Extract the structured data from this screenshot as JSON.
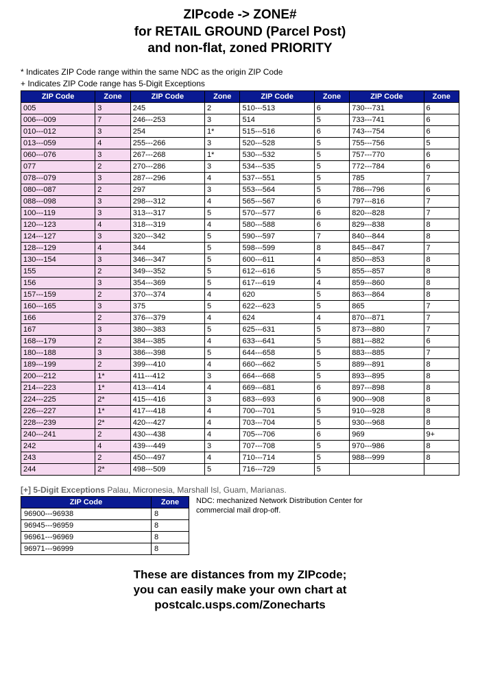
{
  "title_l1": "ZIPcode -> ZONE#",
  "title_l2": "for RETAIL GROUND (Parcel Post)",
  "title_l3": "and non-flat, zoned PRIORITY",
  "note1": "* Indicates ZIP Code range within the same NDC as the origin ZIP Code",
  "note2": "+ Indicates ZIP Code range has 5-Digit Exceptions",
  "headers": {
    "zip": "ZIP Code",
    "zone": "Zone"
  },
  "colors": {
    "header_bg": "#0a1a92",
    "header_fg": "#ffffff",
    "pink": "#f6d9f0",
    "border": "#000000",
    "page_bg": "#ffffff"
  },
  "columns": [
    [
      {
        "z": "005",
        "n": "3"
      },
      {
        "z": "006---009",
        "n": "7"
      },
      {
        "z": "010---012",
        "n": "3"
      },
      {
        "z": "013---059",
        "n": "4"
      },
      {
        "z": "060---076",
        "n": "3"
      },
      {
        "z": "077",
        "n": "2"
      },
      {
        "z": "078---079",
        "n": "3"
      },
      {
        "z": "080---087",
        "n": "2"
      },
      {
        "z": "088---098",
        "n": "3"
      },
      {
        "z": "100---119",
        "n": "3"
      },
      {
        "z": "120---123",
        "n": "4"
      },
      {
        "z": "124---127",
        "n": "3"
      },
      {
        "z": "128---129",
        "n": "4"
      },
      {
        "z": "130---154",
        "n": "3"
      },
      {
        "z": "155",
        "n": "2"
      },
      {
        "z": "156",
        "n": "3"
      },
      {
        "z": "157---159",
        "n": "2"
      },
      {
        "z": "160---165",
        "n": "3"
      },
      {
        "z": "166",
        "n": "2"
      },
      {
        "z": "167",
        "n": "3"
      },
      {
        "z": "168---179",
        "n": "2"
      },
      {
        "z": "180---188",
        "n": "3"
      },
      {
        "z": "189---199",
        "n": "2"
      },
      {
        "z": "200---212",
        "n": "1*"
      },
      {
        "z": "214---223",
        "n": "1*"
      },
      {
        "z": "224---225",
        "n": "2*"
      },
      {
        "z": "226---227",
        "n": "1*"
      },
      {
        "z": "228---239",
        "n": "2*"
      },
      {
        "z": "240---241",
        "n": "2"
      },
      {
        "z": "242",
        "n": "4"
      },
      {
        "z": "243",
        "n": "2"
      },
      {
        "z": "244",
        "n": "2*"
      }
    ],
    [
      {
        "z": "245",
        "n": "2"
      },
      {
        "z": "246---253",
        "n": "3"
      },
      {
        "z": "254",
        "n": "1*"
      },
      {
        "z": "255---266",
        "n": "3"
      },
      {
        "z": "267---268",
        "n": "1*"
      },
      {
        "z": "270---286",
        "n": "3"
      },
      {
        "z": "287---296",
        "n": "4"
      },
      {
        "z": "297",
        "n": "3"
      },
      {
        "z": "298---312",
        "n": "4"
      },
      {
        "z": "313---317",
        "n": "5"
      },
      {
        "z": "318---319",
        "n": "4"
      },
      {
        "z": "320---342",
        "n": "5"
      },
      {
        "z": "344",
        "n": "5"
      },
      {
        "z": "346---347",
        "n": "5"
      },
      {
        "z": "349---352",
        "n": "5"
      },
      {
        "z": "354---369",
        "n": "5"
      },
      {
        "z": "370---374",
        "n": "4"
      },
      {
        "z": "375",
        "n": "5"
      },
      {
        "z": "376---379",
        "n": "4"
      },
      {
        "z": "380---383",
        "n": "5"
      },
      {
        "z": "384---385",
        "n": "4"
      },
      {
        "z": "386---398",
        "n": "5"
      },
      {
        "z": "399---410",
        "n": "4"
      },
      {
        "z": "411---412",
        "n": "3"
      },
      {
        "z": "413---414",
        "n": "4"
      },
      {
        "z": "415---416",
        "n": "3"
      },
      {
        "z": "417---418",
        "n": "4"
      },
      {
        "z": "420---427",
        "n": "4"
      },
      {
        "z": "430---438",
        "n": "4"
      },
      {
        "z": "439---449",
        "n": "3"
      },
      {
        "z": "450---497",
        "n": "4"
      },
      {
        "z": "498---509",
        "n": "5"
      }
    ],
    [
      {
        "z": "510---513",
        "n": "6"
      },
      {
        "z": "514",
        "n": "5"
      },
      {
        "z": "515---516",
        "n": "6"
      },
      {
        "z": "520---528",
        "n": "5"
      },
      {
        "z": "530---532",
        "n": "5"
      },
      {
        "z": "534---535",
        "n": "5"
      },
      {
        "z": "537---551",
        "n": "5"
      },
      {
        "z": "553---564",
        "n": "5"
      },
      {
        "z": "565---567",
        "n": "6"
      },
      {
        "z": "570---577",
        "n": "6"
      },
      {
        "z": "580---588",
        "n": "6"
      },
      {
        "z": "590---597",
        "n": "7"
      },
      {
        "z": "598---599",
        "n": "8"
      },
      {
        "z": "600---611",
        "n": "4"
      },
      {
        "z": "612---616",
        "n": "5"
      },
      {
        "z": "617---619",
        "n": "4"
      },
      {
        "z": "620",
        "n": "5"
      },
      {
        "z": "622---623",
        "n": "5"
      },
      {
        "z": "624",
        "n": "4"
      },
      {
        "z": "625---631",
        "n": "5"
      },
      {
        "z": "633---641",
        "n": "5"
      },
      {
        "z": "644---658",
        "n": "5"
      },
      {
        "z": "660---662",
        "n": "5"
      },
      {
        "z": "664---668",
        "n": "5"
      },
      {
        "z": "669---681",
        "n": "6"
      },
      {
        "z": "683---693",
        "n": "6"
      },
      {
        "z": "700---701",
        "n": "5"
      },
      {
        "z": "703---704",
        "n": "5"
      },
      {
        "z": "705---706",
        "n": "6"
      },
      {
        "z": "707---708",
        "n": "5"
      },
      {
        "z": "710---714",
        "n": "5"
      },
      {
        "z": "716---729",
        "n": "5"
      }
    ],
    [
      {
        "z": "730---731",
        "n": "6"
      },
      {
        "z": "733---741",
        "n": "6"
      },
      {
        "z": "743---754",
        "n": "6"
      },
      {
        "z": "755---756",
        "n": "5"
      },
      {
        "z": "757---770",
        "n": "6"
      },
      {
        "z": "772---784",
        "n": "6"
      },
      {
        "z": "785",
        "n": "7"
      },
      {
        "z": "786---796",
        "n": "6"
      },
      {
        "z": "797---816",
        "n": "7"
      },
      {
        "z": "820---828",
        "n": "7"
      },
      {
        "z": "829---838",
        "n": "8"
      },
      {
        "z": "840---844",
        "n": "8"
      },
      {
        "z": "845---847",
        "n": "7"
      },
      {
        "z": "850---853",
        "n": "8"
      },
      {
        "z": "855---857",
        "n": "8"
      },
      {
        "z": "859---860",
        "n": "8"
      },
      {
        "z": "863---864",
        "n": "8"
      },
      {
        "z": "865",
        "n": "7"
      },
      {
        "z": "870---871",
        "n": "7"
      },
      {
        "z": "873---880",
        "n": "7"
      },
      {
        "z": "881---882",
        "n": "6"
      },
      {
        "z": "883---885",
        "n": "7"
      },
      {
        "z": "889---891",
        "n": "8"
      },
      {
        "z": "893---895",
        "n": "8"
      },
      {
        "z": "897---898",
        "n": "8"
      },
      {
        "z": "900---908",
        "n": "8"
      },
      {
        "z": "910---928",
        "n": "8"
      },
      {
        "z": "930---968",
        "n": "8"
      },
      {
        "z": "969",
        "n": "9+"
      },
      {
        "z": "970---986",
        "n": "8"
      },
      {
        "z": "988---999",
        "n": "8"
      },
      {
        "z": "",
        "n": ""
      }
    ]
  ],
  "exc_title_prefix": "[+] 5-Digit Exceptions",
  "exc_title_rest": "Palau, Micronesia, Marshall Isl, Guam, Marianas.",
  "exc_rows": [
    {
      "z": "96900---96938",
      "n": "8"
    },
    {
      "z": "96945---96959",
      "n": "8"
    },
    {
      "z": "96961---96969",
      "n": "8"
    },
    {
      "z": "96971---96999",
      "n": "8"
    }
  ],
  "ndc_note": "NDC: mechanized Network Distribution Center for commercial mail drop-off.",
  "footer_l1": "These are distances from my ZIPcode;",
  "footer_l2": "you can easily make your own chart at",
  "footer_l3": "postcalc.usps.com/Zonecharts"
}
